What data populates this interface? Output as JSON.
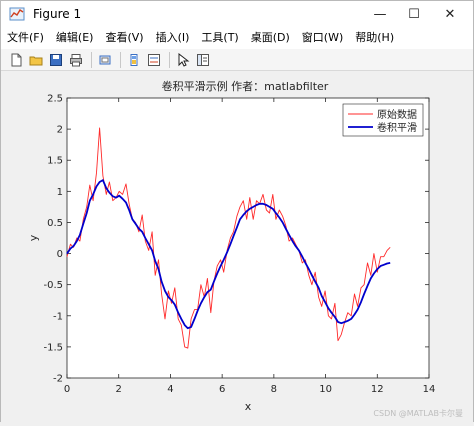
{
  "window": {
    "title": "Figure 1",
    "controls": {
      "minimize": "—",
      "maximize": "☐",
      "close": "✕"
    }
  },
  "menu": [
    "文件(F)",
    "编辑(E)",
    "查看(V)",
    "插入(I)",
    "工具(T)",
    "桌面(D)",
    "窗口(W)",
    "帮助(H)"
  ],
  "toolbar": [
    "new-file-icon",
    "open-folder-icon",
    "save-icon",
    "print-icon",
    "print-preview-icon",
    "colorbar-icon",
    "legend-icon",
    "pointer-icon",
    "property-editor-icon"
  ],
  "watermark": "CSDN @MATLAB卡尔曼",
  "chart_data": {
    "type": "line",
    "title": "卷积平滑示例 作者：matlabfilter",
    "xlabel": "x",
    "ylabel": "y",
    "xlim": [
      0,
      14
    ],
    "ylim": [
      -2,
      2.5
    ],
    "xticks": [
      "0",
      "2",
      "4",
      "6",
      "8",
      "10",
      "12",
      "14"
    ],
    "yticks": [
      "-2",
      "-1.5",
      "-1",
      "-0.5",
      "0",
      "0.5",
      "1",
      "1.5",
      "2",
      "2.5"
    ],
    "legend_position": "top-right",
    "colors": {
      "raw": "#ff2a2a",
      "smooth": "#0000cc"
    },
    "series": [
      {
        "name": "原始数据",
        "x": [
          0.0,
          0.13,
          0.25,
          0.38,
          0.5,
          0.63,
          0.76,
          0.88,
          1.01,
          1.14,
          1.26,
          1.39,
          1.52,
          1.64,
          1.77,
          1.9,
          2.02,
          2.15,
          2.28,
          2.4,
          2.53,
          2.65,
          2.78,
          2.91,
          3.03,
          3.16,
          3.29,
          3.41,
          3.54,
          3.66,
          3.79,
          3.92,
          4.04,
          4.17,
          4.3,
          4.42,
          4.55,
          4.67,
          4.8,
          4.93,
          5.05,
          5.18,
          5.31,
          5.43,
          5.56,
          5.68,
          5.81,
          5.94,
          6.06,
          6.19,
          6.32,
          6.44,
          6.57,
          6.69,
          6.82,
          6.95,
          7.07,
          7.2,
          7.33,
          7.45,
          7.58,
          7.71,
          7.83,
          7.96,
          8.08,
          8.21,
          8.34,
          8.46,
          8.59,
          8.72,
          8.84,
          8.97,
          9.1,
          9.22,
          9.35,
          9.47,
          9.6,
          9.73,
          9.85,
          9.98,
          10.11,
          10.23,
          10.36,
          10.48,
          10.61,
          10.74,
          10.86,
          10.99,
          11.12,
          11.24,
          11.37,
          11.49,
          11.62,
          11.75,
          11.87,
          12.0,
          12.13,
          12.25,
          12.38,
          12.5
        ],
        "y": [
          -0.05,
          0.15,
          0.1,
          0.25,
          0.2,
          0.55,
          0.75,
          1.1,
          0.85,
          1.3,
          2.02,
          1.25,
          0.95,
          1.15,
          0.85,
          0.9,
          1.0,
          0.95,
          1.12,
          0.8,
          0.55,
          0.5,
          0.35,
          0.62,
          0.2,
          0.05,
          0.35,
          -0.35,
          -0.1,
          -0.65,
          -1.05,
          -0.6,
          -0.8,
          -0.55,
          -1.05,
          -1.15,
          -1.5,
          -1.52,
          -1.05,
          -0.9,
          -0.9,
          -0.5,
          -0.7,
          -0.4,
          -0.95,
          -0.45,
          -0.2,
          -0.1,
          -0.3,
          0.05,
          0.25,
          0.35,
          0.6,
          0.75,
          0.85,
          0.55,
          0.9,
          0.55,
          0.85,
          0.8,
          0.95,
          0.7,
          0.65,
          0.95,
          0.55,
          0.7,
          0.6,
          0.45,
          0.2,
          0.25,
          0.15,
          0.05,
          -0.15,
          -0.1,
          -0.35,
          -0.5,
          -0.3,
          -0.7,
          -0.85,
          -0.6,
          -1.0,
          -1.05,
          -0.8,
          -1.4,
          -1.3,
          -1.1,
          -0.95,
          -1.0,
          -0.65,
          -0.85,
          -0.55,
          -0.5,
          -0.15,
          -0.35,
          0.0,
          -0.3,
          -0.05,
          -0.05,
          0.05,
          0.1
        ]
      },
      {
        "name": "卷积平滑",
        "x": [
          0.0,
          0.13,
          0.25,
          0.38,
          0.5,
          0.63,
          0.76,
          0.88,
          1.01,
          1.14,
          1.26,
          1.39,
          1.52,
          1.64,
          1.77,
          1.9,
          2.02,
          2.15,
          2.28,
          2.4,
          2.53,
          2.65,
          2.78,
          2.91,
          3.03,
          3.16,
          3.29,
          3.41,
          3.54,
          3.66,
          3.79,
          3.92,
          4.04,
          4.17,
          4.3,
          4.42,
          4.55,
          4.67,
          4.8,
          4.93,
          5.05,
          5.18,
          5.31,
          5.43,
          5.56,
          5.68,
          5.81,
          5.94,
          6.06,
          6.19,
          6.32,
          6.44,
          6.57,
          6.69,
          6.82,
          6.95,
          7.07,
          7.2,
          7.33,
          7.45,
          7.58,
          7.71,
          7.83,
          7.96,
          8.08,
          8.21,
          8.34,
          8.46,
          8.59,
          8.72,
          8.84,
          8.97,
          9.1,
          9.22,
          9.35,
          9.47,
          9.6,
          9.73,
          9.85,
          9.98,
          10.11,
          10.23,
          10.36,
          10.48,
          10.61,
          10.74,
          10.86,
          10.99,
          11.12,
          11.24,
          11.37,
          11.49,
          11.62,
          11.75,
          11.87,
          12.0,
          12.13,
          12.25,
          12.38,
          12.5
        ],
        "y": [
          0.0,
          0.08,
          0.12,
          0.2,
          0.3,
          0.48,
          0.65,
          0.85,
          0.95,
          1.08,
          1.15,
          1.18,
          1.05,
          0.98,
          0.92,
          0.9,
          0.93,
          0.88,
          0.82,
          0.7,
          0.55,
          0.48,
          0.4,
          0.35,
          0.25,
          0.15,
          0.05,
          -0.12,
          -0.25,
          -0.45,
          -0.6,
          -0.7,
          -0.75,
          -0.82,
          -0.95,
          -1.05,
          -1.15,
          -1.2,
          -1.18,
          -1.05,
          -0.92,
          -0.8,
          -0.7,
          -0.62,
          -0.58,
          -0.45,
          -0.32,
          -0.2,
          -0.1,
          0.02,
          0.15,
          0.28,
          0.42,
          0.55,
          0.62,
          0.68,
          0.72,
          0.75,
          0.78,
          0.8,
          0.8,
          0.78,
          0.75,
          0.72,
          0.65,
          0.58,
          0.5,
          0.4,
          0.3,
          0.2,
          0.12,
          0.05,
          -0.05,
          -0.15,
          -0.25,
          -0.35,
          -0.45,
          -0.55,
          -0.68,
          -0.78,
          -0.88,
          -0.95,
          -1.02,
          -1.1,
          -1.12,
          -1.1,
          -1.08,
          -1.05,
          -0.98,
          -0.9,
          -0.78,
          -0.65,
          -0.52,
          -0.4,
          -0.32,
          -0.25,
          -0.2,
          -0.18,
          -0.16,
          -0.15
        ]
      }
    ]
  }
}
